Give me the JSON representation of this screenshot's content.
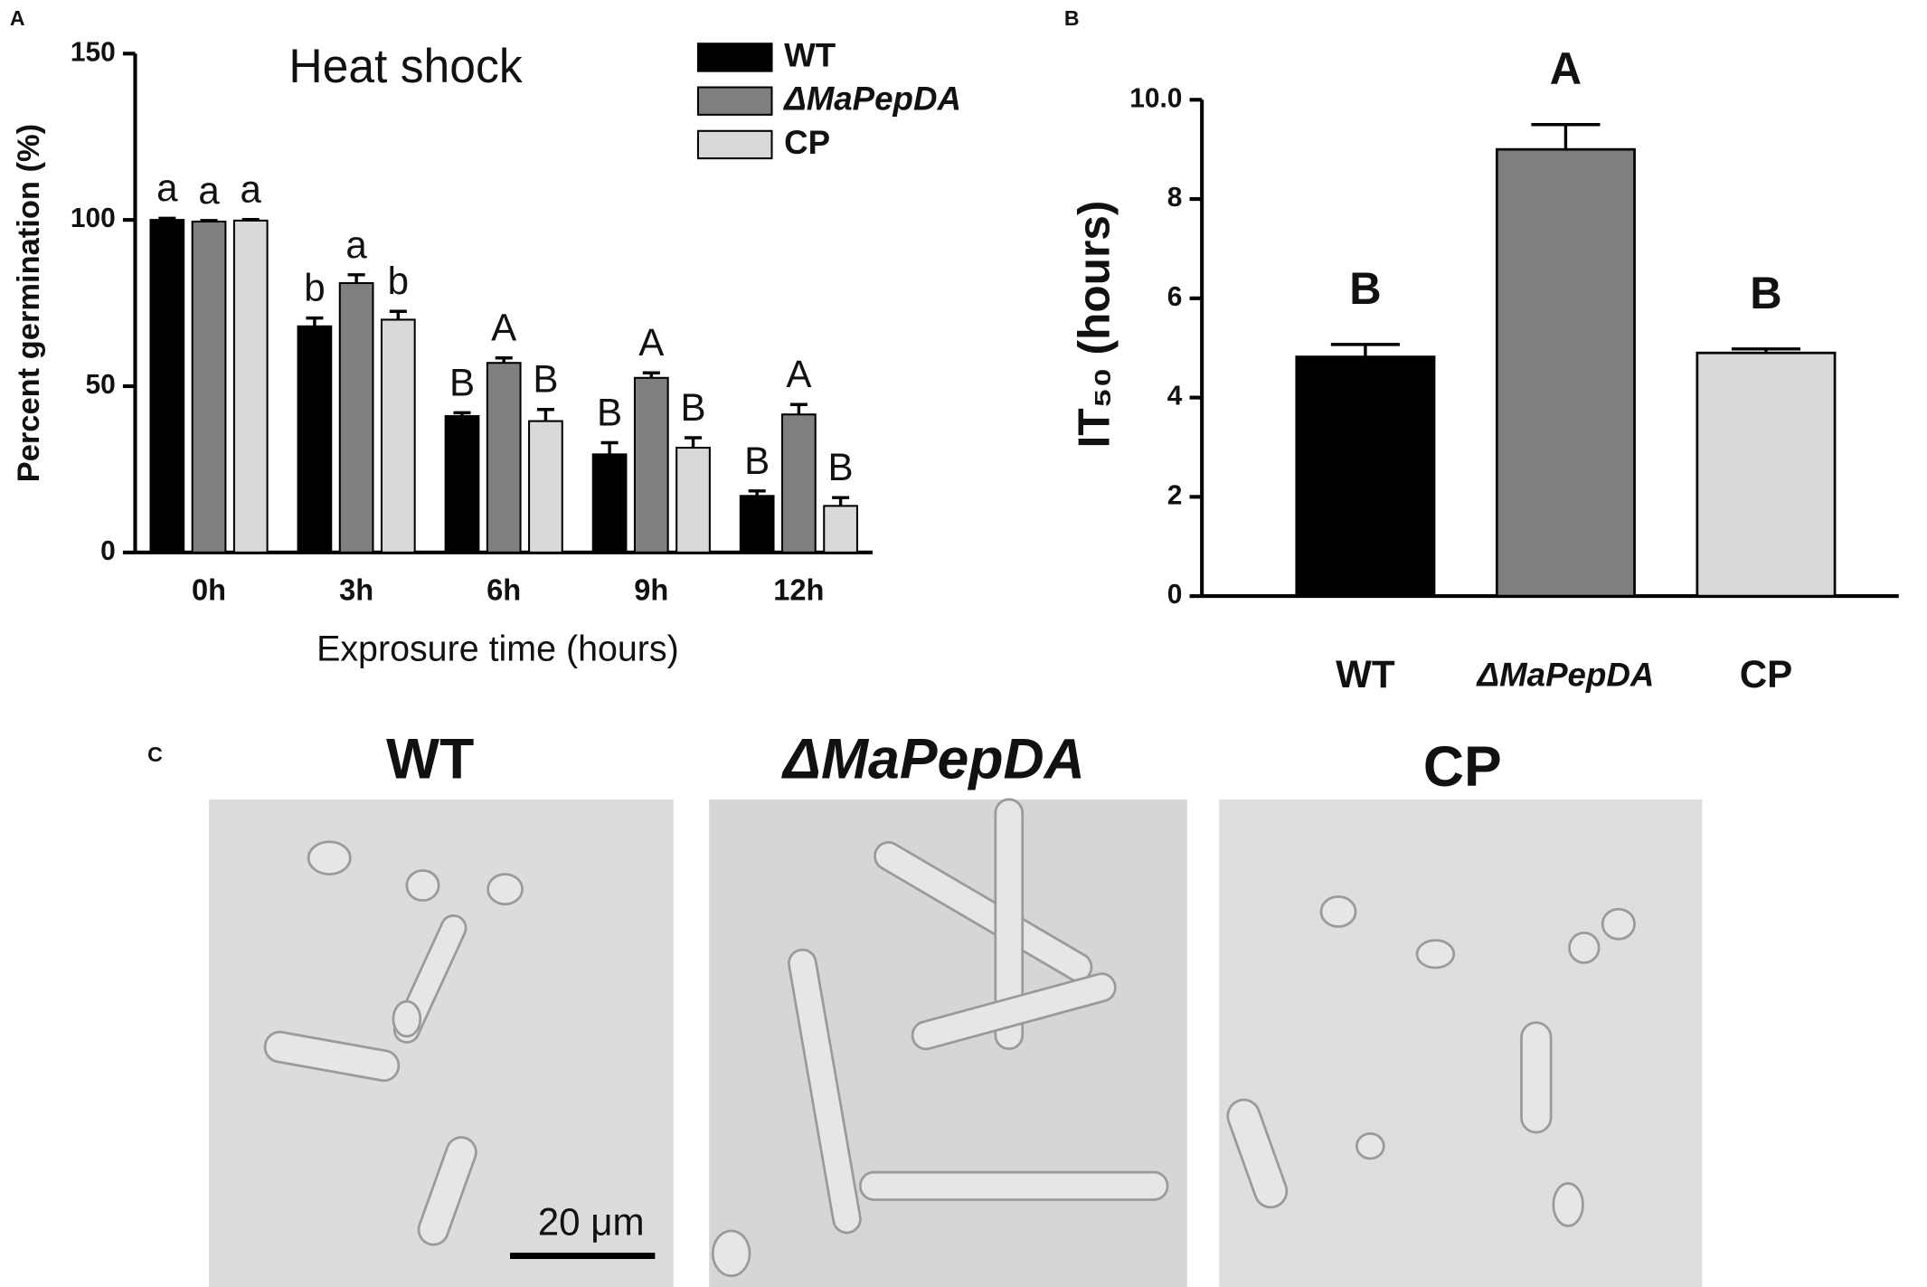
{
  "chart_data": [
    {
      "type": "grouped_bar",
      "panel": "A",
      "title": "Heat shock",
      "x_label": "Exprosure time (hours)",
      "y_label": "Percent germination (%)",
      "categories": [
        "0h",
        "3h",
        "6h",
        "9h",
        "12h"
      ],
      "series": [
        {
          "name": "WT",
          "color": "#000000",
          "values": [
            100,
            68,
            41,
            29.5,
            17
          ],
          "errors": [
            0.5,
            2.5,
            1,
            3.5,
            1.5
          ],
          "letters": [
            "a",
            "b",
            "B",
            "B",
            "B"
          ]
        },
        {
          "name": "ΔMaPepDA",
          "color": "#7f7f7f",
          "values": [
            99.5,
            81,
            57,
            52.5,
            41.5
          ],
          "errors": [
            0.3,
            2.5,
            1.5,
            1.5,
            3
          ],
          "letters": [
            "a",
            "a",
            "A",
            "A",
            "A"
          ]
        },
        {
          "name": "CP",
          "color": "#d9d9d9",
          "values": [
            99.8,
            70,
            39.5,
            31.5,
            14
          ],
          "errors": [
            0.3,
            2.5,
            3.5,
            3,
            2.5
          ],
          "letters": [
            "a",
            "b",
            "B",
            "B",
            "B"
          ]
        }
      ],
      "ylim": [
        0,
        150
      ],
      "yticks": [
        0,
        50,
        100,
        150
      ],
      "legend": "top-right"
    },
    {
      "type": "bar",
      "panel": "B",
      "y_label": "IT₅₀ (hours)",
      "categories": [
        "WT",
        "ΔMaPepDA",
        "CP"
      ],
      "values": [
        4.82,
        9.0,
        4.9
      ],
      "errors": [
        0.25,
        0.5,
        0.08
      ],
      "letters": [
        "B",
        "A",
        "B"
      ],
      "colors": [
        "#000000",
        "#7f7f7f",
        "#d9d9d9"
      ],
      "ylim": [
        0,
        10
      ],
      "yticks": [
        0,
        2,
        4,
        6,
        8,
        {
          "value": 10,
          "label": "10.0"
        }
      ]
    }
  ],
  "micrographs": {
    "panel": "C",
    "labels": [
      "WT",
      "ΔMaPepDA",
      "CP"
    ],
    "scale_bar": "20 μm"
  }
}
